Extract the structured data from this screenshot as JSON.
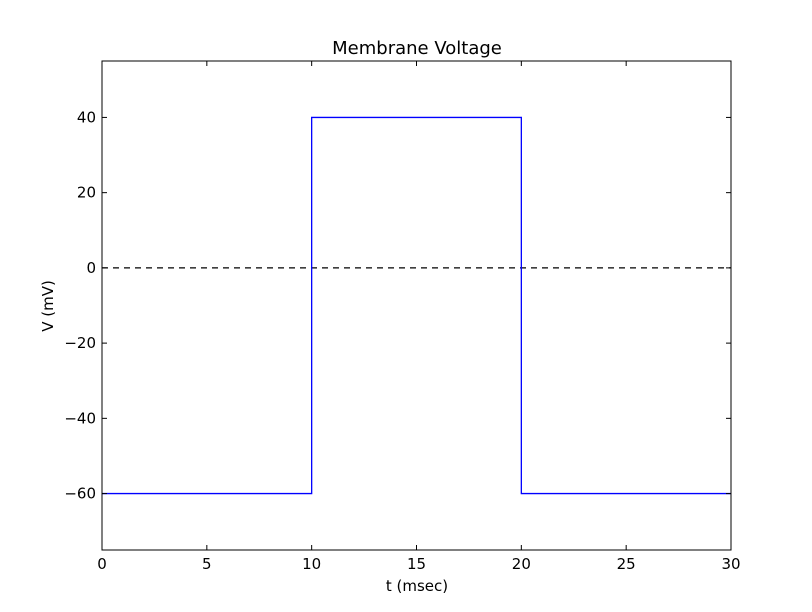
{
  "chart_data": {
    "type": "line",
    "title": "Membrane Voltage",
    "xlabel": "t (msec)",
    "ylabel": "V (mV)",
    "xlim": [
      0,
      30
    ],
    "ylim": [
      -75,
      55
    ],
    "xticks": [
      0,
      5,
      10,
      15,
      20,
      25,
      30
    ],
    "yticks": [
      -60,
      -40,
      -20,
      0,
      20,
      40
    ],
    "ytick_labels": [
      "−60",
      "−40",
      "−20",
      "0",
      "20",
      "40"
    ],
    "xtick_labels": [
      "0",
      "5",
      "10",
      "15",
      "20",
      "25",
      "30"
    ],
    "series": [
      {
        "color": "#0000ff",
        "style": "solid",
        "x": [
          0,
          10,
          10,
          20,
          20,
          30
        ],
        "y": [
          -60,
          -60,
          40,
          40,
          -60,
          -60
        ]
      }
    ],
    "reference_lines": [
      {
        "type": "horizontal",
        "y": 0,
        "color": "#000000",
        "style": "dashed"
      }
    ],
    "grid": false,
    "legend": "none"
  }
}
